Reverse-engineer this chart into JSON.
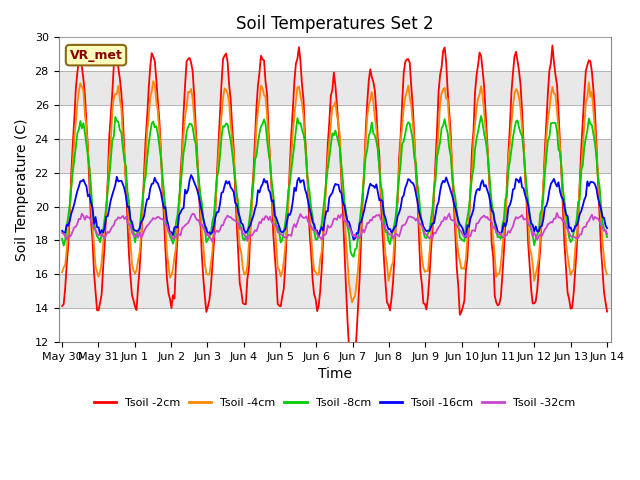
{
  "title": "Soil Temperatures Set 2",
  "ylabel": "Soil Temperature (C)",
  "xlabel": "Time",
  "ylim": [
    12,
    30
  ],
  "annotation_text": "VR_met",
  "legend": [
    "Tsoil -2cm",
    "Tsoil -4cm",
    "Tsoil -8cm",
    "Tsoil -16cm",
    "Tsoil -32cm"
  ],
  "colors": [
    "#ff0000",
    "#ff8800",
    "#00cc00",
    "#0000ff",
    "#cc44cc"
  ],
  "xtick_labels": [
    "May 30",
    "May 31",
    "Jun 1",
    "Jun 2",
    "Jun 3",
    "Jun 4",
    "Jun 5",
    "Jun 6",
    "Jun 7",
    "Jun 8",
    "Jun 9",
    "Jun 10",
    "Jun 11",
    "Jun 12",
    "Jun 13",
    "Jun 14"
  ],
  "title_fontsize": 12,
  "axis_fontsize": 10,
  "tick_fontsize": 8,
  "fig_facecolor": "#ffffff",
  "plot_facecolor": "#e8e8e8"
}
